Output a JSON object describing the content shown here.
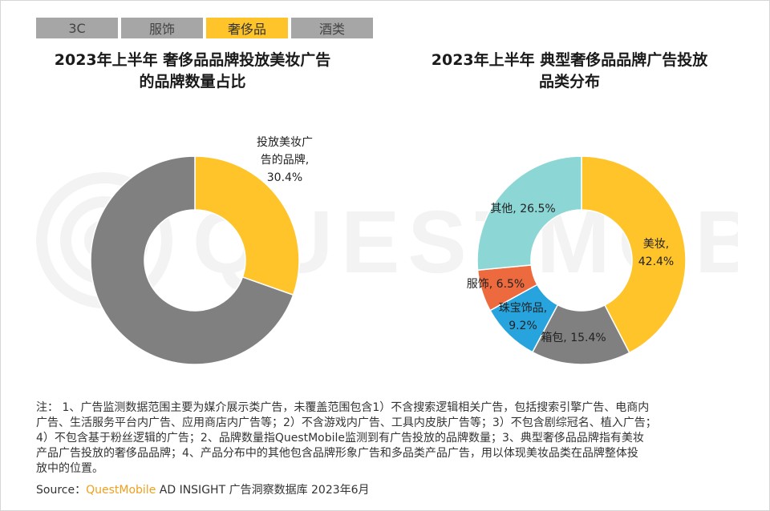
{
  "tabs": [
    {
      "label": "3C",
      "active": false
    },
    {
      "label": "服饰",
      "active": false
    },
    {
      "label": "奢侈品",
      "active": true
    },
    {
      "label": "酒类",
      "active": false
    }
  ],
  "watermark": {
    "text": "QUESTMOBILE"
  },
  "colors": {
    "yellow": "#fec42a",
    "gray": "#808080",
    "teal": "#8dd6d6",
    "orange": "#ec6a3e",
    "blue": "#27a4de",
    "tab_bg": "#a6a6a6",
    "brand": "#f0a020"
  },
  "chart_data": [
    {
      "type": "pie",
      "subtype": "donut",
      "title_line1": "2023年上半年 奢侈品品牌投放美妆广告",
      "title_line2": "的品牌数量占比",
      "slices": [
        {
          "label_line1": "投放美妆广",
          "label_line2": "告的品牌,",
          "value": 30.4,
          "value_label": "30.4%",
          "color": "#fec42a"
        },
        {
          "label_line1": "",
          "label_line2": "",
          "value": 69.6,
          "value_label": "",
          "color": "#808080"
        }
      ]
    },
    {
      "type": "pie",
      "subtype": "donut",
      "title_line1": "2023年上半年 典型奢侈品品牌广告投放",
      "title_line2": "品类分布",
      "slices": [
        {
          "label_line1": "美妆,",
          "label_line2": "42.4%",
          "value": 42.4,
          "color": "#fec42a"
        },
        {
          "label_line1": "箱包, 15.4%",
          "label_line2": "",
          "value": 15.4,
          "color": "#808080"
        },
        {
          "label_line1": "珠宝饰品,",
          "label_line2": "9.2%",
          "value": 9.2,
          "color": "#27a4de"
        },
        {
          "label_line1": "服饰, 6.5%",
          "label_line2": "",
          "value": 6.5,
          "color": "#ec6a3e"
        },
        {
          "label_line1": "其他, 26.5%",
          "label_line2": "",
          "value": 26.5,
          "color": "#8dd6d6"
        }
      ]
    }
  ],
  "notes": "注： 1、广告监测数据范围主要为媒介展示类广告，未覆盖范围包含1）不含搜索逻辑相关广告，包括搜索引擎广告、电商内\n广告、生活服务平台内广告、应用商店内广告等；2）不含游戏内广告、工具内皮肤广告等；3）不包含剧综冠名、植入广告；\n4）不包含基于粉丝逻辑的广告；2、品牌数量指QuestMobile监测到有广告投放的品牌数量；3、典型奢侈品品牌指有美妆\n产品广告投放的奢侈品品牌；4、产品分布中的其他包含品牌形象广告和多品类产品广告，用以体现美妆品类在品牌整体投\n放中的位置。",
  "source": {
    "prefix": "Source：",
    "brand": "QuestMobile",
    "suffix": " AD INSIGHT 广告洞察数据库 2023年6月"
  }
}
